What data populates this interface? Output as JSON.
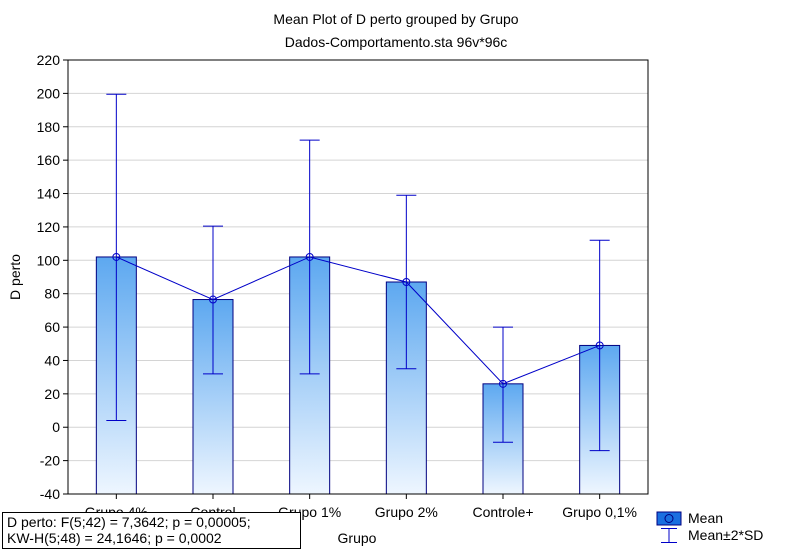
{
  "chart_data": {
    "type": "bar",
    "title": "Mean Plot of D perto grouped by  Grupo",
    "subtitle": "Dados-Comportamento.sta 96v*96c",
    "xlabel": "Grupo",
    "ylabel": "D perto",
    "ylim": [
      -40,
      220
    ],
    "yticks": [
      -40,
      -20,
      0,
      20,
      40,
      60,
      80,
      100,
      120,
      140,
      160,
      180,
      200,
      220
    ],
    "categories": [
      "Grupo 4%",
      "Control",
      "Grupo 1%",
      "Grupo 2%",
      "Controle+",
      "Grupo 0,1%"
    ],
    "series": [
      {
        "name": "Mean",
        "values": [
          102,
          76.5,
          102,
          87,
          26,
          49
        ]
      },
      {
        "name": "Mean±2*SD",
        "lower": [
          4,
          32,
          32,
          35,
          -9,
          -14
        ],
        "upper": [
          199.5,
          120.5,
          172,
          139,
          60,
          112
        ]
      }
    ],
    "grid": true,
    "legend": "bottom-right",
    "colors": {
      "bar_top": "#5da8f0",
      "bar_bottom": "#eef6ff",
      "bar_edge": "#000080",
      "line": "#0000c8"
    }
  },
  "stats": {
    "line1": " D perto:    F(5;42) = 7,3642; p = 0,00005;",
    "line2": "KW-H(5;48) = 24,1646; p = 0,0002"
  }
}
